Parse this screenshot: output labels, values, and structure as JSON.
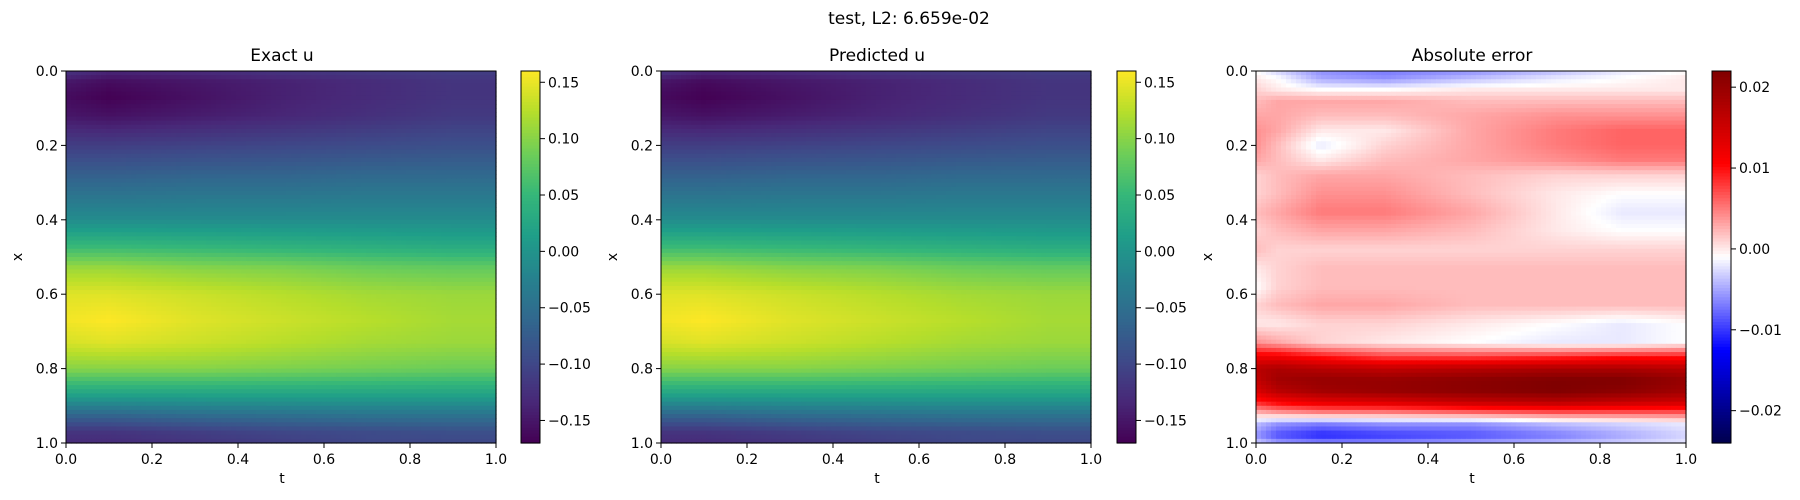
{
  "figure": {
    "suptitle": "test, L2: 6.659e-02"
  },
  "chart_data": [
    {
      "type": "heatmap",
      "title": "Exact u",
      "xlabel": "t",
      "ylabel": "x",
      "xlim": [
        0.0,
        1.0
      ],
      "ylim": [
        1.0,
        0.0
      ],
      "xticks": [
        "0.0",
        "0.2",
        "0.4",
        "0.6",
        "0.8",
        "1.0"
      ],
      "yticks": [
        "0.0",
        "0.2",
        "0.4",
        "0.6",
        "0.8",
        "1.0"
      ],
      "colormap": "viridis",
      "vmin": -0.17,
      "vmax": 0.16,
      "colorbar_ticks": [
        {
          "value": 0.15,
          "label": "0.15"
        },
        {
          "value": 0.1,
          "label": "0.10"
        },
        {
          "value": 0.05,
          "label": "0.05"
        },
        {
          "value": 0.0,
          "label": "0.00"
        },
        {
          "value": -0.05,
          "label": "−0.05"
        },
        {
          "value": -0.1,
          "label": "−0.10"
        },
        {
          "value": -0.15,
          "label": "−0.15"
        }
      ],
      "x_samples": [
        0.0,
        0.1,
        0.3,
        0.5,
        0.7,
        0.9,
        1.0
      ],
      "y_samples": [
        0.0,
        0.03,
        0.07,
        0.12,
        0.2,
        0.3,
        0.4,
        0.47,
        0.53,
        0.6,
        0.67,
        0.73,
        0.8,
        0.87,
        0.93,
        0.97,
        1.0
      ],
      "z": [
        [
          -0.12,
          -0.135,
          -0.13,
          -0.12,
          -0.115,
          -0.11,
          -0.11
        ],
        [
          -0.15,
          -0.16,
          -0.15,
          -0.14,
          -0.13,
          -0.12,
          -0.12
        ],
        [
          -0.16,
          -0.17,
          -0.155,
          -0.14,
          -0.13,
          -0.12,
          -0.12
        ],
        [
          -0.15,
          -0.155,
          -0.145,
          -0.135,
          -0.125,
          -0.115,
          -0.115
        ],
        [
          -0.11,
          -0.11,
          -0.105,
          -0.1,
          -0.095,
          -0.09,
          -0.09
        ],
        [
          -0.06,
          -0.06,
          -0.055,
          -0.055,
          -0.05,
          -0.05,
          -0.05
        ],
        [
          -0.01,
          -0.01,
          -0.01,
          -0.01,
          -0.01,
          -0.01,
          -0.01
        ],
        [
          0.05,
          0.05,
          0.045,
          0.04,
          0.035,
          0.03,
          0.03
        ],
        [
          0.11,
          0.11,
          0.1,
          0.095,
          0.085,
          0.08,
          0.08
        ],
        [
          0.145,
          0.145,
          0.135,
          0.125,
          0.115,
          0.11,
          0.11
        ],
        [
          0.155,
          0.16,
          0.145,
          0.135,
          0.125,
          0.115,
          0.115
        ],
        [
          0.14,
          0.145,
          0.135,
          0.125,
          0.115,
          0.11,
          0.11
        ],
        [
          0.1,
          0.1,
          0.1,
          0.095,
          0.09,
          0.085,
          0.085
        ],
        [
          0.02,
          0.02,
          0.02,
          0.02,
          0.02,
          0.02,
          0.02
        ],
        [
          -0.07,
          -0.07,
          -0.06,
          -0.055,
          -0.05,
          -0.05,
          -0.05
        ],
        [
          -0.12,
          -0.12,
          -0.11,
          -0.1,
          -0.095,
          -0.09,
          -0.09
        ],
        [
          -0.13,
          -0.13,
          -0.12,
          -0.11,
          -0.1,
          -0.1,
          -0.1
        ]
      ]
    },
    {
      "type": "heatmap",
      "title": "Predicted u",
      "xlabel": "t",
      "ylabel": "x",
      "xlim": [
        0.0,
        1.0
      ],
      "ylim": [
        1.0,
        0.0
      ],
      "xticks": [
        "0.0",
        "0.2",
        "0.4",
        "0.6",
        "0.8",
        "1.0"
      ],
      "yticks": [
        "0.0",
        "0.2",
        "0.4",
        "0.6",
        "0.8",
        "1.0"
      ],
      "colormap": "viridis",
      "vmin": -0.17,
      "vmax": 0.16,
      "colorbar_ticks": [
        {
          "value": 0.15,
          "label": "0.15"
        },
        {
          "value": 0.1,
          "label": "0.10"
        },
        {
          "value": 0.05,
          "label": "0.05"
        },
        {
          "value": 0.0,
          "label": "0.00"
        },
        {
          "value": -0.05,
          "label": "−0.05"
        },
        {
          "value": -0.1,
          "label": "−0.10"
        },
        {
          "value": -0.15,
          "label": "−0.15"
        }
      ],
      "x_samples": [
        0.0,
        0.1,
        0.3,
        0.5,
        0.7,
        0.9,
        1.0
      ],
      "y_samples": [
        0.0,
        0.03,
        0.07,
        0.12,
        0.2,
        0.3,
        0.4,
        0.47,
        0.53,
        0.6,
        0.67,
        0.73,
        0.8,
        0.87,
        0.93,
        0.97,
        1.0
      ],
      "z": [
        [
          -0.12,
          -0.135,
          -0.13,
          -0.12,
          -0.115,
          -0.11,
          -0.11
        ],
        [
          -0.152,
          -0.162,
          -0.15,
          -0.14,
          -0.13,
          -0.12,
          -0.12
        ],
        [
          -0.162,
          -0.17,
          -0.155,
          -0.14,
          -0.13,
          -0.12,
          -0.12
        ],
        [
          -0.15,
          -0.155,
          -0.145,
          -0.135,
          -0.125,
          -0.115,
          -0.115
        ],
        [
          -0.11,
          -0.11,
          -0.105,
          -0.1,
          -0.095,
          -0.09,
          -0.09
        ],
        [
          -0.06,
          -0.06,
          -0.055,
          -0.055,
          -0.05,
          -0.05,
          -0.05
        ],
        [
          -0.01,
          -0.01,
          -0.01,
          -0.01,
          -0.01,
          -0.01,
          -0.01
        ],
        [
          0.05,
          0.05,
          0.045,
          0.04,
          0.035,
          0.03,
          0.03
        ],
        [
          0.11,
          0.11,
          0.1,
          0.095,
          0.085,
          0.08,
          0.08
        ],
        [
          0.145,
          0.145,
          0.135,
          0.125,
          0.115,
          0.11,
          0.11
        ],
        [
          0.155,
          0.16,
          0.145,
          0.135,
          0.125,
          0.115,
          0.115
        ],
        [
          0.14,
          0.145,
          0.135,
          0.125,
          0.115,
          0.11,
          0.11
        ],
        [
          0.1,
          0.1,
          0.1,
          0.095,
          0.09,
          0.085,
          0.085
        ],
        [
          0.02,
          0.02,
          0.02,
          0.02,
          0.02,
          0.02,
          0.02
        ],
        [
          -0.07,
          -0.07,
          -0.06,
          -0.055,
          -0.05,
          -0.05,
          -0.05
        ],
        [
          -0.12,
          -0.12,
          -0.11,
          -0.1,
          -0.095,
          -0.09,
          -0.09
        ],
        [
          -0.13,
          -0.13,
          -0.12,
          -0.11,
          -0.1,
          -0.1,
          -0.1
        ]
      ]
    },
    {
      "type": "heatmap",
      "title": "Absolute error",
      "xlabel": "t",
      "ylabel": "x",
      "xlim": [
        0.0,
        1.0
      ],
      "ylim": [
        1.0,
        0.0
      ],
      "xticks": [
        "0.0",
        "0.2",
        "0.4",
        "0.6",
        "0.8",
        "1.0"
      ],
      "yticks": [
        "0.0",
        "0.2",
        "0.4",
        "0.6",
        "0.8",
        "1.0"
      ],
      "colormap": "seismic",
      "vmin": -0.024,
      "vmax": 0.022,
      "colorbar_ticks": [
        {
          "value": 0.02,
          "label": "0.02"
        },
        {
          "value": 0.01,
          "label": "0.01"
        },
        {
          "value": 0.0,
          "label": "0.00"
        },
        {
          "value": -0.01,
          "label": "−0.01"
        },
        {
          "value": -0.02,
          "label": "−0.02"
        }
      ],
      "x_samples": [
        0.0,
        0.05,
        0.15,
        0.3,
        0.5,
        0.7,
        0.85,
        1.0
      ],
      "y_samples": [
        0.0,
        0.02,
        0.05,
        0.08,
        0.12,
        0.16,
        0.2,
        0.24,
        0.28,
        0.33,
        0.38,
        0.43,
        0.48,
        0.53,
        0.58,
        0.63,
        0.68,
        0.73,
        0.77,
        0.8,
        0.83,
        0.86,
        0.89,
        0.92,
        0.95,
        0.98,
        1.0
      ],
      "z": [
        [
          -0.001,
          -0.003,
          -0.006,
          -0.007,
          -0.006,
          -0.004,
          -0.002,
          -0.001
        ],
        [
          0.0,
          -0.001,
          -0.005,
          -0.006,
          -0.004,
          -0.002,
          -0.001,
          0.0
        ],
        [
          0.001,
          0.0,
          -0.001,
          -0.001,
          0.0,
          0.0,
          0.0,
          0.0
        ],
        [
          0.002,
          0.003,
          0.003,
          0.003,
          0.002,
          0.002,
          0.002,
          0.002
        ],
        [
          0.003,
          0.003,
          0.002,
          0.002,
          0.003,
          0.004,
          0.004,
          0.004
        ],
        [
          0.004,
          0.003,
          0.0,
          0.0,
          0.003,
          0.005,
          0.006,
          0.006
        ],
        [
          0.004,
          0.002,
          -0.002,
          0.001,
          0.003,
          0.005,
          0.006,
          0.006
        ],
        [
          0.003,
          0.002,
          0.0,
          0.002,
          0.003,
          0.004,
          0.005,
          0.005
        ],
        [
          0.001,
          0.002,
          0.003,
          0.003,
          0.002,
          0.001,
          0.001,
          0.001
        ],
        [
          0.001,
          0.002,
          0.004,
          0.004,
          0.002,
          0.0,
          -0.001,
          -0.001
        ],
        [
          0.002,
          0.003,
          0.005,
          0.005,
          0.003,
          0.0,
          -0.002,
          -0.002
        ],
        [
          0.001,
          0.002,
          0.003,
          0.003,
          0.002,
          0.0,
          -0.001,
          -0.001
        ],
        [
          0.002,
          0.001,
          0.001,
          0.001,
          0.001,
          0.001,
          0.001,
          0.001
        ],
        [
          0.0,
          0.001,
          0.002,
          0.002,
          0.002,
          0.002,
          0.002,
          0.002
        ],
        [
          -0.001,
          0.001,
          0.002,
          0.002,
          0.002,
          0.002,
          0.002,
          0.002
        ],
        [
          0.001,
          0.002,
          0.003,
          0.003,
          0.002,
          0.002,
          0.002,
          0.002
        ],
        [
          0.0,
          0.0,
          0.001,
          0.001,
          0.0,
          -0.001,
          -0.002,
          -0.001
        ],
        [
          0.004,
          0.003,
          0.001,
          0.0,
          -0.001,
          -0.002,
          -0.002,
          -0.001
        ],
        [
          0.012,
          0.012,
          0.01,
          0.008,
          0.008,
          0.009,
          0.01,
          0.01
        ],
        [
          0.017,
          0.018,
          0.017,
          0.016,
          0.017,
          0.018,
          0.018,
          0.017
        ],
        [
          0.016,
          0.019,
          0.02,
          0.02,
          0.021,
          0.022,
          0.022,
          0.02
        ],
        [
          0.014,
          0.017,
          0.019,
          0.02,
          0.021,
          0.022,
          0.021,
          0.019
        ],
        [
          0.009,
          0.011,
          0.013,
          0.014,
          0.016,
          0.017,
          0.016,
          0.015
        ],
        [
          0.002,
          0.003,
          0.004,
          0.004,
          0.005,
          0.006,
          0.006,
          0.006
        ],
        [
          -0.004,
          -0.006,
          -0.007,
          -0.006,
          -0.006,
          -0.004,
          -0.003,
          -0.002
        ],
        [
          -0.006,
          -0.009,
          -0.011,
          -0.01,
          -0.009,
          -0.007,
          -0.005,
          -0.003
        ],
        [
          -0.003,
          -0.005,
          -0.006,
          -0.006,
          -0.005,
          -0.004,
          -0.003,
          -0.002
        ]
      ]
    }
  ]
}
